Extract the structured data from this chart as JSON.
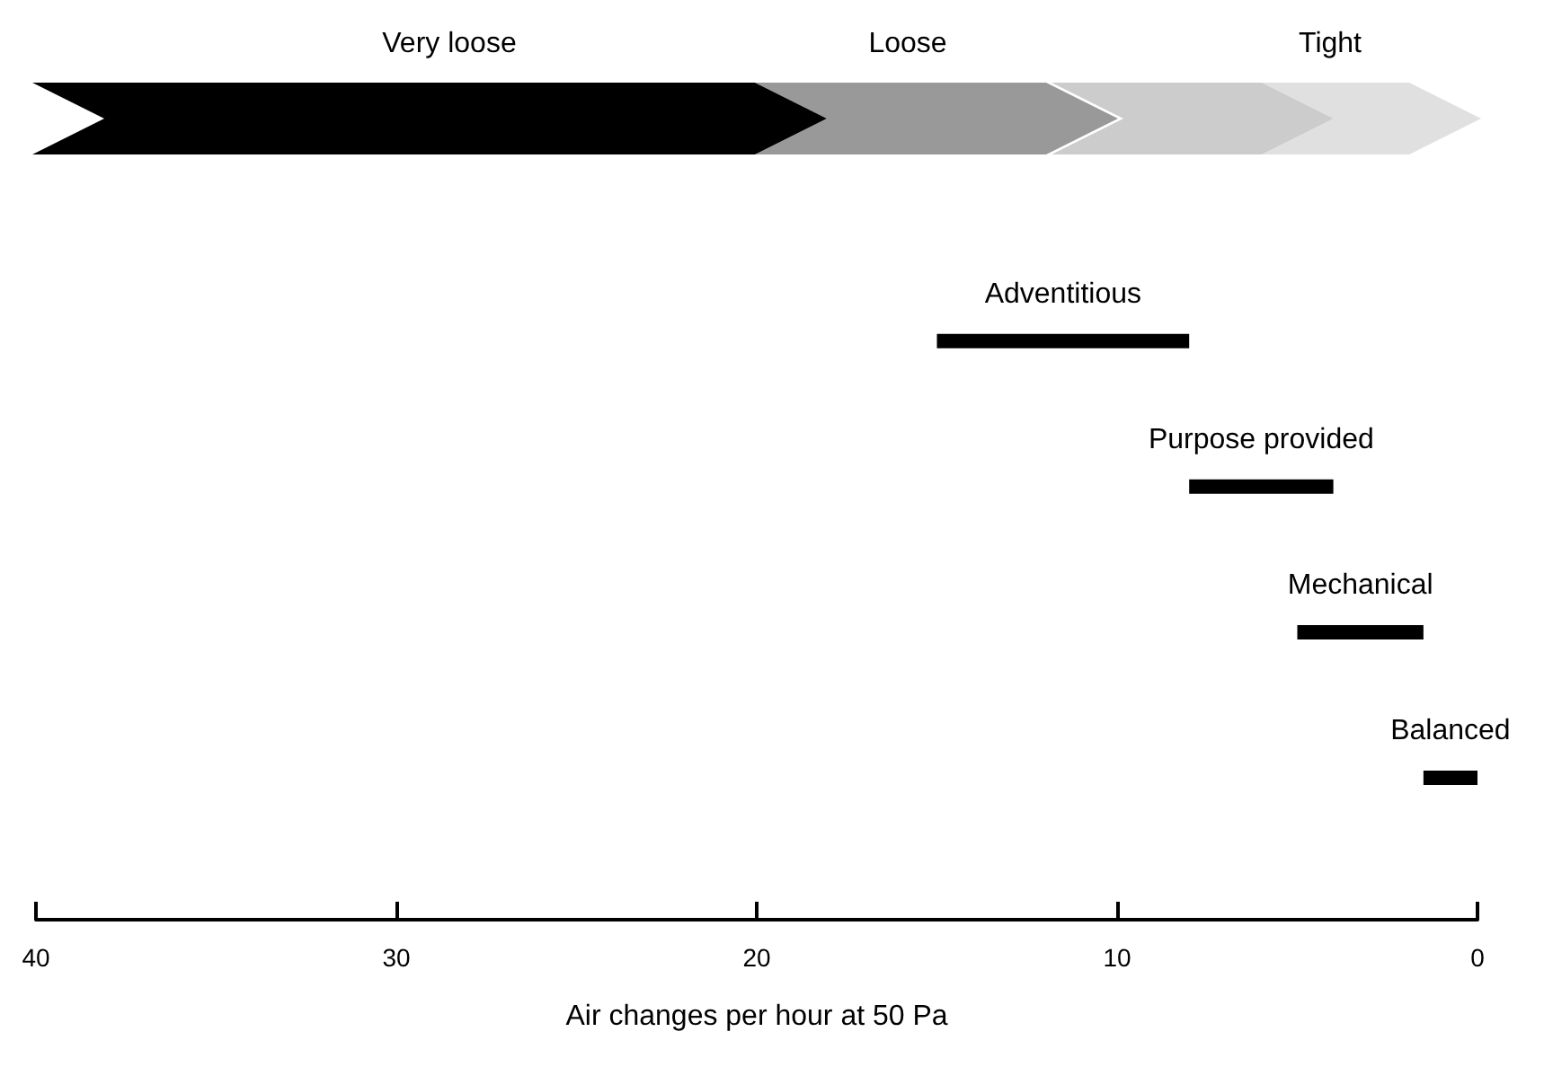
{
  "chart_data": {
    "type": "bar",
    "orientation": "horizontal",
    "xlabel": "Air changes per hour at 50 Pa",
    "categories": [
      null,
      null,
      null,
      null
    ],
    "base": [
      8,
      4,
      1.5,
      0
    ],
    "values": [
      7,
      4,
      3.5,
      1.5
    ],
    "color": "#000000",
    "xlim": [
      40,
      0
    ],
    "xticks": [
      40,
      30,
      20,
      10,
      0
    ],
    "annotations": [
      "Very loose",
      "Loose",
      "Tight",
      "Adventitious",
      "Purpose provided",
      "Mechanical",
      "Balanced"
    ]
  }
}
